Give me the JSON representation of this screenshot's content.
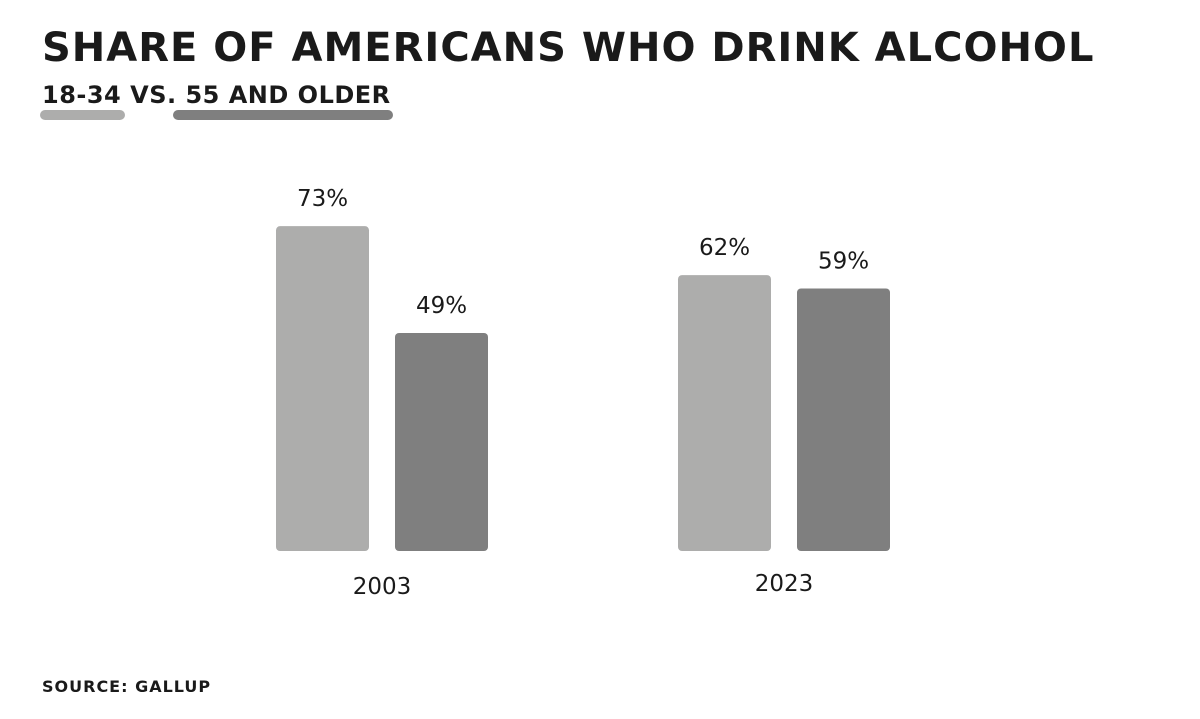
{
  "title": "SHARE OF AMERICANS WHO DRINK ALCOHOL",
  "subtitle": {
    "series_a_label": "18-34",
    "separator": "VS.",
    "series_b_label": "55 AND OLDER"
  },
  "source": "SOURCE: GALLUP",
  "colors": {
    "series_a": "#adadac",
    "series_b": "#7f7f7f",
    "text": "#1a1a1a"
  },
  "chart_data": {
    "type": "bar",
    "title": "SHARE OF AMERICANS WHO DRINK ALCOHOL",
    "subtitle": "18-34 VS. 55 AND OLDER",
    "categories": [
      "2003",
      "2023"
    ],
    "series": [
      {
        "name": "18-34",
        "values": [
          73,
          62
        ],
        "labels": [
          "73%",
          "62%"
        ]
      },
      {
        "name": "55 AND OLDER",
        "values": [
          49,
          59
        ],
        "labels": [
          "49%",
          "59%"
        ]
      }
    ],
    "ylim": [
      0,
      100
    ],
    "grid": false,
    "legend": "subtitle underlines",
    "xlabel": "",
    "ylabel": ""
  }
}
